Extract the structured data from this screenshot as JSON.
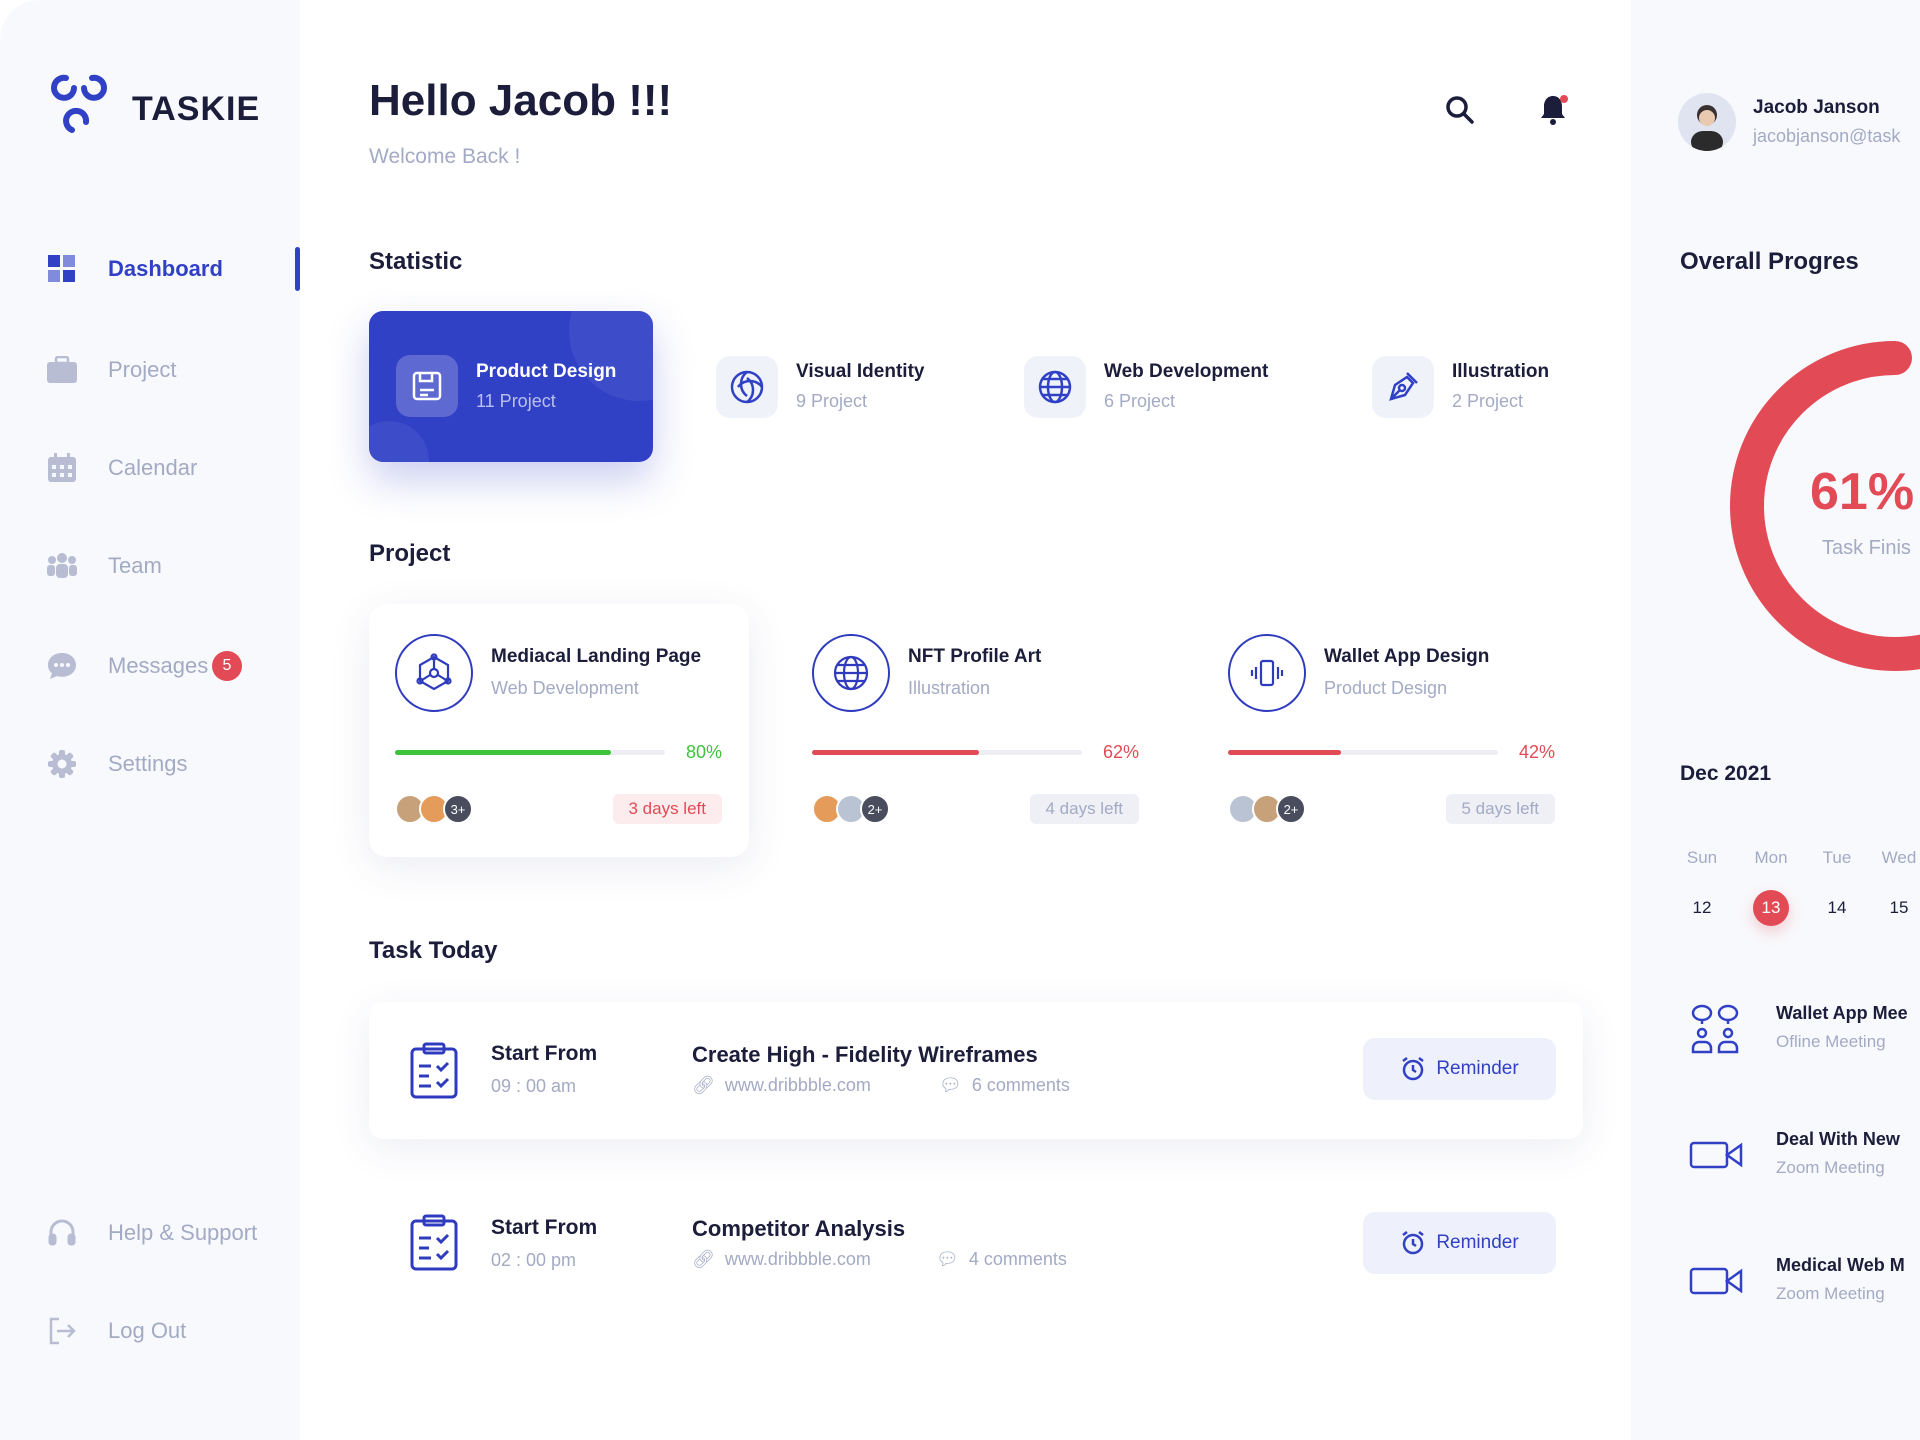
{
  "brand": {
    "name": "TASKIE"
  },
  "colors": {
    "accent": "#3141c6",
    "red": "#e24a55",
    "green": "#3ec33a",
    "muted": "#a3aac4"
  },
  "sidebar": {
    "items": [
      {
        "label": "Dashboard",
        "icon": "grid-icon",
        "active": true
      },
      {
        "label": "Project",
        "icon": "briefcase-icon"
      },
      {
        "label": "Calendar",
        "icon": "calendar-icon"
      },
      {
        "label": "Team",
        "icon": "team-icon"
      },
      {
        "label": "Messages",
        "icon": "chat-icon",
        "badge": "5"
      },
      {
        "label": "Settings",
        "icon": "gear-icon"
      }
    ],
    "bottom": [
      {
        "label": "Help & Support",
        "icon": "headset-icon"
      },
      {
        "label": "Log Out",
        "icon": "logout-icon"
      }
    ]
  },
  "header": {
    "title": "Hello Jacob !!!",
    "subtitle": "Welcome Back !"
  },
  "user": {
    "name": "Jacob Janson",
    "email": "jacobjanson@task"
  },
  "statistic": {
    "title": "Statistic",
    "items": [
      {
        "title": "Product Design",
        "sub": "11 Project",
        "icon": "floppy-icon"
      },
      {
        "title": "Visual Identity",
        "sub": "9 Project",
        "icon": "spiral-icon"
      },
      {
        "title": "Web Development",
        "sub": "6 Project",
        "icon": "globe-icon"
      },
      {
        "title": "Illustration",
        "sub": "2 Project",
        "icon": "pen-tool-icon"
      }
    ]
  },
  "project": {
    "title": "Project",
    "items": [
      {
        "title": "Mediacal Landing Page",
        "sub": "Web Development",
        "progress": 80,
        "pct": "80%",
        "extra": "3+",
        "days": "3 days left"
      },
      {
        "title": "NFT Profile Art",
        "sub": "Illustration",
        "progress": 62,
        "pct": "62%",
        "extra": "2+",
        "days": "4 days left"
      },
      {
        "title": "Wallet App Design",
        "sub": "Product Design",
        "progress": 42,
        "pct": "42%",
        "extra": "2+",
        "days": "5 days left"
      }
    ]
  },
  "tasks": {
    "title": "Task Today",
    "items": [
      {
        "start": "Start From",
        "time": "09 : 00 am",
        "title": "Create High - Fidelity Wireframes",
        "link": "www.dribbble.com",
        "comments": "6 comments",
        "button": "Reminder"
      },
      {
        "start": "Start From",
        "time": "02 : 00 pm",
        "title": "Competitor Analysis",
        "link": "www.dribbble.com",
        "comments": "4 comments",
        "button": "Reminder"
      }
    ]
  },
  "progress": {
    "title": "Overall Progres",
    "value": 61,
    "label": "61%",
    "caption": "Task Finis"
  },
  "calendar": {
    "month": "Dec 2021",
    "days": [
      "Sun",
      "Mon",
      "Tue",
      "Wed"
    ],
    "dates": [
      "12",
      "13",
      "14",
      "15"
    ],
    "selected": "13"
  },
  "meetings": [
    {
      "title": "Wallet App Mee",
      "sub": "Ofline Meeting",
      "icon": "people-chat-icon"
    },
    {
      "title": "Deal With New",
      "sub": "Zoom Meeting",
      "icon": "video-camera-icon"
    },
    {
      "title": "Medical Web M",
      "sub": "Zoom Meeting",
      "icon": "video-camera-icon"
    }
  ]
}
